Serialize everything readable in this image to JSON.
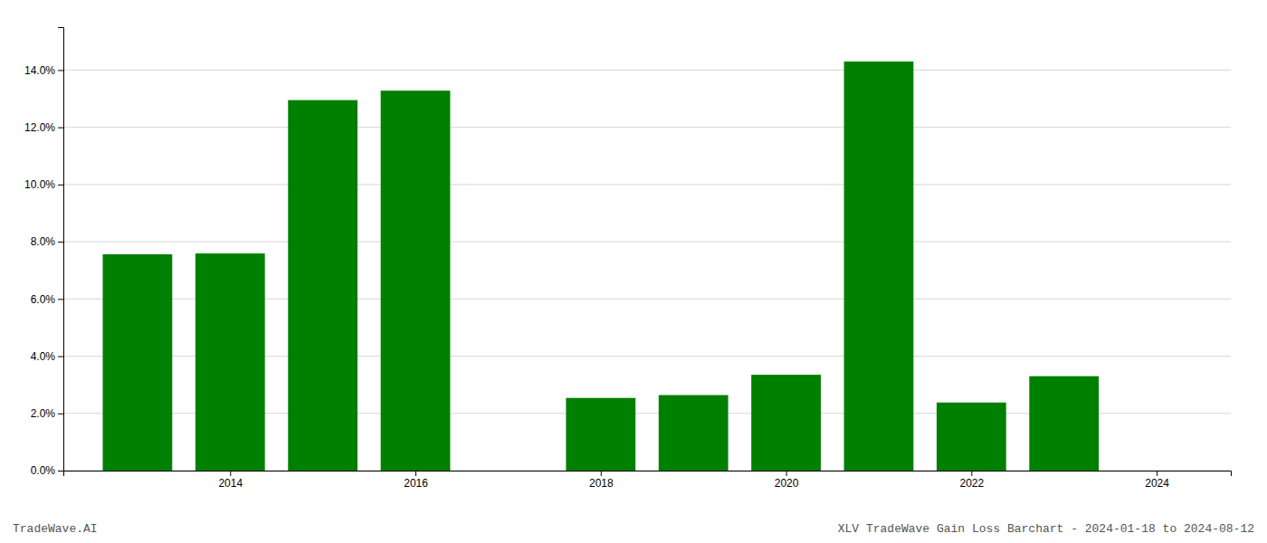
{
  "chart_data": {
    "type": "bar",
    "title": "XLV TradeWave Gain Loss Barchart - 2024-01-18 to 2024-08-12",
    "annotations": [
      "TradeWave.AI"
    ],
    "x": [
      2013,
      2014,
      2015,
      2016,
      2017,
      2018,
      2019,
      2020,
      2021,
      2022,
      2023
    ],
    "values": [
      0.0756,
      0.0759,
      0.1295,
      0.1328,
      0.0,
      0.0254,
      0.0264,
      0.0335,
      0.143,
      0.0238,
      0.033
    ],
    "color": "#008000",
    "xlim": [
      2012.2,
      2024.8
    ],
    "xticks": [
      2014,
      2016,
      2018,
      2020,
      2022,
      2024
    ],
    "ylim": [
      0.0,
      0.155
    ],
    "yticks": [
      {
        "value": 0.0,
        "label": "0.0%"
      },
      {
        "value": 0.02,
        "label": "2.0%"
      },
      {
        "value": 0.04,
        "label": "4.0%"
      },
      {
        "value": 0.06,
        "label": "6.0%"
      },
      {
        "value": 0.08,
        "label": "8.0%"
      },
      {
        "value": 0.1,
        "label": "10.0%"
      },
      {
        "value": 0.12,
        "label": "12.0%"
      },
      {
        "value": 0.14,
        "label": "14.0%"
      }
    ],
    "grid": true
  }
}
